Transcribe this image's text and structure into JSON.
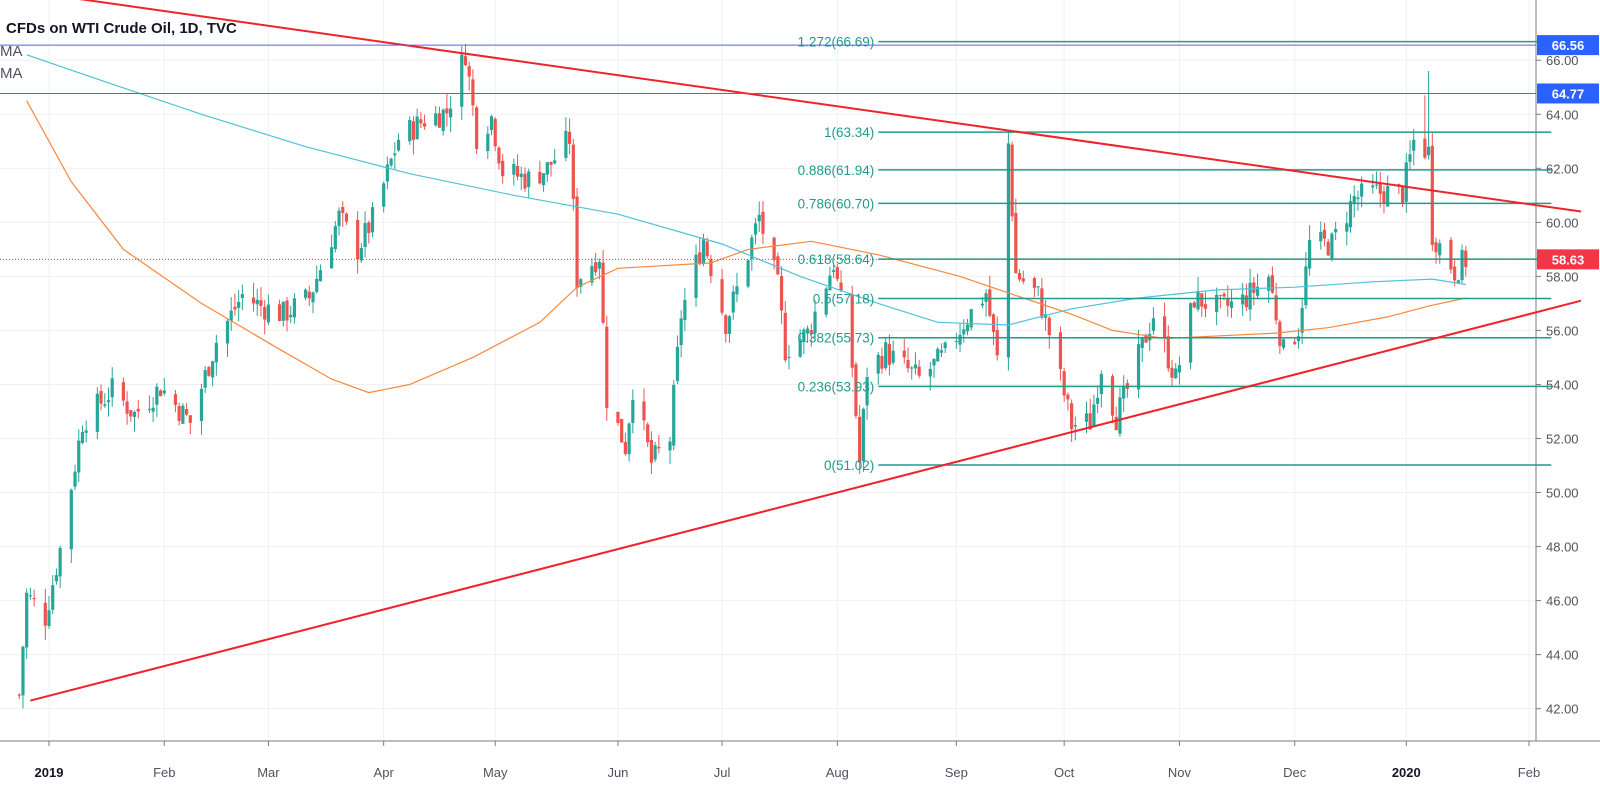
{
  "title": "CFDs on WTI Crude Oil, 1D, TVC",
  "ma_labels": [
    "MA",
    "MA"
  ],
  "colors": {
    "up": "#26a69a",
    "down": "#ef5350",
    "trendline": "#f0222b",
    "fib": "#1e9c8c",
    "ma_fast": "#f7883b",
    "ma_slow": "#4fc3d9",
    "hline": "#5b5bff",
    "last_price": "#f23645",
    "grid": "#eef0f3",
    "axis": "#787b86"
  },
  "chart_data": {
    "type": "candlestick",
    "title": "CFDs on WTI Crude Oil, 1D, TVC",
    "xlim": [
      "2018-12-26",
      "2020-02-17"
    ],
    "ylim": [
      41.1,
      67.6
    ],
    "grid": true,
    "y_ticks": [
      42,
      44,
      46,
      48,
      50,
      52,
      54,
      56,
      58,
      60,
      62,
      64,
      66
    ],
    "x_ticks": [
      {
        "date": "2019-01-01",
        "label": "2019",
        "bold": true
      },
      {
        "date": "2019-02-01",
        "label": "Feb"
      },
      {
        "date": "2019-03-01",
        "label": "Mar"
      },
      {
        "date": "2019-04-01",
        "label": "Apr"
      },
      {
        "date": "2019-05-01",
        "label": "May"
      },
      {
        "date": "2019-06-03",
        "label": "Jun"
      },
      {
        "date": "2019-07-01",
        "label": "Jul"
      },
      {
        "date": "2019-08-01",
        "label": "Aug"
      },
      {
        "date": "2019-09-02",
        "label": "Sep"
      },
      {
        "date": "2019-10-01",
        "label": "Oct"
      },
      {
        "date": "2019-11-01",
        "label": "Nov"
      },
      {
        "date": "2019-12-02",
        "label": "Dec"
      },
      {
        "date": "2020-01-01",
        "label": "2020",
        "bold": true
      },
      {
        "date": "2020-02-03",
        "label": "Feb"
      }
    ],
    "price_anchors": [
      [
        "2018-12-24",
        42.5
      ],
      [
        "2018-12-26",
        46.2
      ],
      [
        "2018-12-31",
        45.4
      ],
      [
        "2019-01-04",
        47.9
      ],
      [
        "2019-01-10",
        52.6
      ],
      [
        "2019-01-18",
        53.8
      ],
      [
        "2019-01-24",
        52.9
      ],
      [
        "2019-01-31",
        53.9
      ],
      [
        "2019-02-08",
        52.6
      ],
      [
        "2019-02-15",
        55.6
      ],
      [
        "2019-02-22",
        57.3
      ],
      [
        "2019-02-27",
        56.9
      ],
      [
        "2019-03-05",
        56.6
      ],
      [
        "2019-03-12",
        57.2
      ],
      [
        "2019-03-20",
        60.2
      ],
      [
        "2019-03-25",
        59.0
      ],
      [
        "2019-03-29",
        60.1
      ],
      [
        "2019-04-05",
        63.1
      ],
      [
        "2019-04-12",
        63.8
      ],
      [
        "2019-04-18",
        64.1
      ],
      [
        "2019-04-23",
        66.3
      ],
      [
        "2019-04-26",
        63.2
      ],
      [
        "2019-04-30",
        63.9
      ],
      [
        "2019-05-03",
        61.9
      ],
      [
        "2019-05-10",
        61.6
      ],
      [
        "2019-05-15",
        62.0
      ],
      [
        "2019-05-21",
        63.1
      ],
      [
        "2019-05-23",
        57.9
      ],
      [
        "2019-05-29",
        58.8
      ],
      [
        "2019-05-31",
        53.5
      ],
      [
        "2019-06-05",
        51.7
      ],
      [
        "2019-06-07",
        53.9
      ],
      [
        "2019-06-12",
        51.1
      ],
      [
        "2019-06-17",
        52.0
      ],
      [
        "2019-06-20",
        56.6
      ],
      [
        "2019-06-26",
        59.4
      ],
      [
        "2019-07-02",
        56.3
      ],
      [
        "2019-07-05",
        57.5
      ],
      [
        "2019-07-11",
        60.2
      ],
      [
        "2019-07-16",
        57.6
      ],
      [
        "2019-07-18",
        55.3
      ],
      [
        "2019-07-24",
        55.9
      ],
      [
        "2019-07-31",
        58.5
      ],
      [
        "2019-08-05",
        54.7
      ],
      [
        "2019-08-07",
        51.1
      ],
      [
        "2019-08-09",
        54.5
      ],
      [
        "2019-08-14",
        55.2
      ],
      [
        "2019-08-23",
        54.2
      ],
      [
        "2019-08-30",
        55.1
      ],
      [
        "2019-09-04",
        56.3
      ],
      [
        "2019-09-10",
        57.4
      ],
      [
        "2019-09-13",
        54.9
      ],
      [
        "2019-09-16",
        62.9
      ],
      [
        "2019-09-18",
        58.1
      ],
      [
        "2019-09-24",
        57.3
      ],
      [
        "2019-09-27",
        55.9
      ],
      [
        "2019-10-03",
        52.5
      ],
      [
        "2019-10-08",
        52.6
      ],
      [
        "2019-10-11",
        54.7
      ],
      [
        "2019-10-15",
        52.8
      ],
      [
        "2019-10-18",
        53.8
      ],
      [
        "2019-10-25",
        56.6
      ],
      [
        "2019-10-31",
        54.2
      ],
      [
        "2019-11-05",
        57.2
      ],
      [
        "2019-11-12",
        56.8
      ],
      [
        "2019-11-18",
        57.1
      ],
      [
        "2019-11-25",
        58.0
      ],
      [
        "2019-11-29",
        55.2
      ],
      [
        "2019-12-03",
        56.1
      ],
      [
        "2019-12-06",
        59.2
      ],
      [
        "2019-12-12",
        59.2
      ],
      [
        "2019-12-18",
        60.9
      ],
      [
        "2019-12-24",
        61.1
      ],
      [
        "2019-12-31",
        61.1
      ],
      [
        "2020-01-03",
        63.0
      ],
      [
        "2020-01-07",
        62.6
      ],
      [
        "2020-01-08",
        59.6
      ],
      [
        "2020-01-14",
        58.2
      ],
      [
        "2020-01-16",
        58.5
      ],
      [
        "2020-01-17",
        58.6
      ]
    ],
    "trendlines": [
      {
        "name": "resistance",
        "points": [
          [
            "2018-12-23",
            68.6
          ],
          [
            "2020-02-17",
            60.4
          ]
        ]
      },
      {
        "name": "support",
        "points": [
          [
            "2018-12-27",
            42.3
          ],
          [
            "2020-02-17",
            57.1
          ]
        ]
      }
    ],
    "horizontal_levels": [
      {
        "price": 66.56,
        "label": "66.56"
      },
      {
        "price": 64.77,
        "label": "64.77"
      }
    ],
    "last_price": {
      "value": 58.63,
      "label": "58.63"
    },
    "fibonacci": {
      "start_date": "2019-08-12",
      "end_date": "2020-02-09",
      "levels": [
        {
          "ratio": "1.272",
          "price": 66.69,
          "label": "1.272(66.69)"
        },
        {
          "ratio": "1",
          "price": 63.34,
          "label": "1(63.34)"
        },
        {
          "ratio": "0.886",
          "price": 61.94,
          "label": "0.886(61.94)"
        },
        {
          "ratio": "0.786",
          "price": 60.7,
          "label": "0.786(60.70)"
        },
        {
          "ratio": "0.618",
          "price": 58.64,
          "label": "0.618(58.64)"
        },
        {
          "ratio": "0.5",
          "price": 57.18,
          "label": "0.5(57.18)"
        },
        {
          "ratio": "0.382",
          "price": 55.73,
          "label": "0.382(55.73)"
        },
        {
          "ratio": "0.236",
          "price": 53.93,
          "label": "0.236(53.93)"
        },
        {
          "ratio": "0",
          "price": 51.02,
          "label": "0(51.02)"
        }
      ]
    },
    "moving_averages": [
      {
        "name": "MA",
        "color": "#f7883b",
        "points": [
          [
            "2018-12-26",
            64.5
          ],
          [
            "2019-01-07",
            61.5
          ],
          [
            "2019-01-21",
            59.0
          ],
          [
            "2019-02-11",
            57.0
          ],
          [
            "2019-03-04",
            55.3
          ],
          [
            "2019-03-18",
            54.2
          ],
          [
            "2019-03-28",
            53.7
          ],
          [
            "2019-04-08",
            54.0
          ],
          [
            "2019-04-25",
            55.0
          ],
          [
            "2019-05-13",
            56.3
          ],
          [
            "2019-05-23",
            57.6
          ],
          [
            "2019-06-03",
            58.3
          ],
          [
            "2019-06-28",
            58.5
          ],
          [
            "2019-07-08",
            59.0
          ],
          [
            "2019-07-25",
            59.3
          ],
          [
            "2019-08-12",
            58.8
          ],
          [
            "2019-09-03",
            58.0
          ],
          [
            "2019-09-20",
            57.2
          ],
          [
            "2019-10-03",
            56.6
          ],
          [
            "2019-10-14",
            56.0
          ],
          [
            "2019-10-28",
            55.7
          ],
          [
            "2019-11-12",
            55.8
          ],
          [
            "2019-11-27",
            55.9
          ],
          [
            "2019-12-11",
            56.1
          ],
          [
            "2019-12-27",
            56.5
          ],
          [
            "2020-01-07",
            56.9
          ],
          [
            "2020-01-17",
            57.2
          ]
        ]
      },
      {
        "name": "MA",
        "color": "#4fc3d9",
        "points": [
          [
            "2018-12-26",
            66.2
          ],
          [
            "2019-01-14",
            65.3
          ],
          [
            "2019-02-11",
            64.0
          ],
          [
            "2019-03-11",
            62.8
          ],
          [
            "2019-04-08",
            61.8
          ],
          [
            "2019-05-06",
            61.0
          ],
          [
            "2019-06-03",
            60.3
          ],
          [
            "2019-07-01",
            59.2
          ],
          [
            "2019-07-22",
            58.0
          ],
          [
            "2019-08-12",
            57.0
          ],
          [
            "2019-08-28",
            56.3
          ],
          [
            "2019-09-16",
            56.2
          ],
          [
            "2019-10-03",
            56.8
          ],
          [
            "2019-10-21",
            57.2
          ],
          [
            "2019-11-11",
            57.5
          ],
          [
            "2019-12-02",
            57.6
          ],
          [
            "2019-12-23",
            57.8
          ],
          [
            "2020-01-08",
            57.9
          ],
          [
            "2020-01-17",
            57.7
          ]
        ]
      }
    ]
  }
}
